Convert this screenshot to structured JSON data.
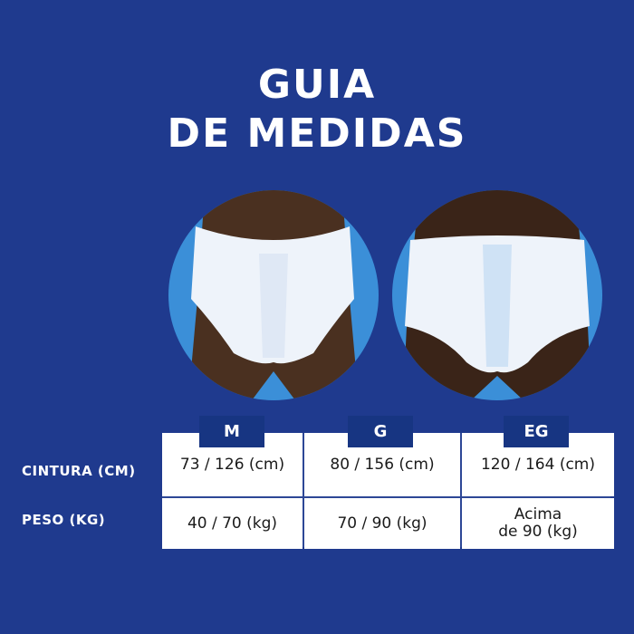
{
  "title": {
    "line1": "GUIA",
    "line2": "DE MEDIDAS"
  },
  "colors": {
    "background": "#1f3a8e",
    "tab": "#173582",
    "photo_bg": "#3b8fd8"
  },
  "photos": [
    {
      "icon": "diaper-front-photo-m"
    },
    {
      "icon": "diaper-front-photo-eg"
    }
  ],
  "table": {
    "sizes": [
      "M",
      "G",
      "EG"
    ],
    "rows": [
      {
        "label": "CINTURA (CM)",
        "values": [
          "73 / 126 (cm)",
          "80 / 156 (cm)",
          "120 / 164  (cm)"
        ]
      },
      {
        "label": "PESO (KG)",
        "values": [
          "40 / 70 (kg)",
          "70 / 90 (kg)",
          "Acima\nde 90 (kg)"
        ]
      }
    ]
  }
}
